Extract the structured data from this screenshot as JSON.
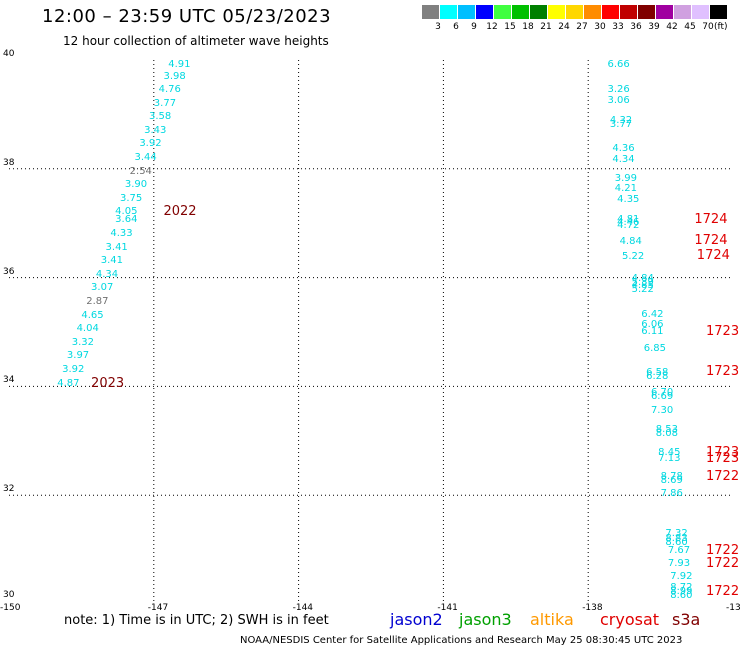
{
  "header": {
    "title": "12:00 – 23:59 UTC 05/23/2023",
    "subtitle": "12 hour collection of altimeter wave heights"
  },
  "legend": {
    "unit": "(ft)",
    "bins": [
      {
        "label": "3",
        "color": "#808080"
      },
      {
        "label": "6",
        "color": "#00ffff"
      },
      {
        "label": "9",
        "color": "#00bfff"
      },
      {
        "label": "12",
        "color": "#0000ff"
      },
      {
        "label": "15",
        "color": "#40ff40"
      },
      {
        "label": "18",
        "color": "#00c000"
      },
      {
        "label": "21",
        "color": "#008000"
      },
      {
        "label": "24",
        "color": "#ffff00"
      },
      {
        "label": "27",
        "color": "#ffd700"
      },
      {
        "label": "30",
        "color": "#ff8c00"
      },
      {
        "label": "33",
        "color": "#ff0000"
      },
      {
        "label": "36",
        "color": "#c00000"
      },
      {
        "label": "39",
        "color": "#800000"
      },
      {
        "label": "42",
        "color": "#a000a0"
      },
      {
        "label": "45",
        "color": "#d0a0e0"
      },
      {
        "label": "70",
        "color": "#e0c0ff"
      },
      {
        "label": "",
        "color": "#000000"
      }
    ]
  },
  "axes": {
    "lon_ticks": [
      "-150",
      "-147",
      "-144",
      "-141",
      "-138",
      "-13"
    ],
    "lat_ticks": [
      "40",
      "38",
      "36",
      "34",
      "32",
      "30"
    ]
  },
  "tracks": [
    {
      "satellite": "jason3",
      "color_cyan": "#00d8e0",
      "color_gray": "#707070",
      "observations": [
        {
          "lat": 39.9,
          "lon": -146.7,
          "v": "4.91",
          "c": "cyan"
        },
        {
          "lat": 39.68,
          "lon": -146.8,
          "v": "3.98",
          "c": "cyan"
        },
        {
          "lat": 39.45,
          "lon": -146.9,
          "v": "4.76",
          "c": "cyan"
        },
        {
          "lat": 39.2,
          "lon": -147.0,
          "v": "3.77",
          "c": "cyan"
        },
        {
          "lat": 38.95,
          "lon": -147.1,
          "v": "3.58",
          "c": "cyan"
        },
        {
          "lat": 38.7,
          "lon": -147.2,
          "v": "3.43",
          "c": "cyan"
        },
        {
          "lat": 38.45,
          "lon": -147.3,
          "v": "3.92",
          "c": "cyan"
        },
        {
          "lat": 38.2,
          "lon": -147.4,
          "v": "3.44",
          "c": "cyan"
        },
        {
          "lat": 37.95,
          "lon": -147.5,
          "v": "2.54",
          "c": "gray"
        },
        {
          "lat": 37.7,
          "lon": -147.6,
          "v": "3.90",
          "c": "cyan"
        },
        {
          "lat": 37.45,
          "lon": -147.7,
          "v": "3.75",
          "c": "cyan"
        },
        {
          "lat": 37.2,
          "lon": -147.8,
          "v": "4.05",
          "c": "cyan"
        },
        {
          "lat": 37.05,
          "lon": -147.8,
          "v": "3.64",
          "c": "cyan"
        },
        {
          "lat": 36.8,
          "lon": -147.9,
          "v": "4.33",
          "c": "cyan"
        },
        {
          "lat": 36.55,
          "lon": -148.0,
          "v": "3.41",
          "c": "cyan"
        },
        {
          "lat": 36.3,
          "lon": -148.1,
          "v": "3.41",
          "c": "cyan"
        },
        {
          "lat": 36.05,
          "lon": -148.2,
          "v": "4.34",
          "c": "cyan"
        },
        {
          "lat": 35.8,
          "lon": -148.3,
          "v": "3.07",
          "c": "cyan"
        },
        {
          "lat": 35.55,
          "lon": -148.4,
          "v": "2.87",
          "c": "gray"
        },
        {
          "lat": 35.3,
          "lon": -148.5,
          "v": "4.65",
          "c": "cyan"
        },
        {
          "lat": 35.05,
          "lon": -148.6,
          "v": "4.04",
          "c": "cyan"
        },
        {
          "lat": 34.8,
          "lon": -148.7,
          "v": "3.32",
          "c": "cyan"
        },
        {
          "lat": 34.55,
          "lon": -148.8,
          "v": "3.97",
          "c": "cyan"
        },
        {
          "lat": 34.3,
          "lon": -148.9,
          "v": "3.92",
          "c": "cyan"
        },
        {
          "lat": 34.05,
          "lon": -149.0,
          "v": "4.87",
          "c": "cyan"
        }
      ],
      "times": [
        {
          "lat": 37.2,
          "lon": -146.8,
          "t": "2022"
        },
        {
          "lat": 34.05,
          "lon": -148.3,
          "t": "2023"
        }
      ],
      "time_color": "#800000"
    },
    {
      "satellite": "cryosat",
      "observations": [
        {
          "lat": 39.9,
          "lon": -137.6,
          "v": "6.66"
        },
        {
          "lat": 39.45,
          "lon": -137.6,
          "v": "3.26"
        },
        {
          "lat": 39.25,
          "lon": -137.6,
          "v": "3.06"
        },
        {
          "lat": 38.87,
          "lon": -137.55,
          "v": "4.32"
        },
        {
          "lat": 38.8,
          "lon": -137.55,
          "v": "3.77"
        },
        {
          "lat": 38.37,
          "lon": -137.5,
          "v": "4.36"
        },
        {
          "lat": 38.17,
          "lon": -137.5,
          "v": "4.34"
        },
        {
          "lat": 37.82,
          "lon": -137.45,
          "v": "3.99"
        },
        {
          "lat": 37.63,
          "lon": -137.45,
          "v": "4.21"
        },
        {
          "lat": 37.42,
          "lon": -137.4,
          "v": "4.35"
        },
        {
          "lat": 37.06,
          "lon": -137.4,
          "v": "4.81"
        },
        {
          "lat": 37.0,
          "lon": -137.4,
          "v": "4.46"
        },
        {
          "lat": 36.95,
          "lon": -137.4,
          "v": "4.72"
        },
        {
          "lat": 36.66,
          "lon": -137.35,
          "v": "4.84"
        },
        {
          "lat": 36.38,
          "lon": -137.3,
          "v": "5.22"
        },
        {
          "lat": 35.98,
          "lon": -137.1,
          "v": "4.84"
        },
        {
          "lat": 35.9,
          "lon": -137.1,
          "v": "5.39"
        },
        {
          "lat": 35.84,
          "lon": -137.1,
          "v": "4.85"
        },
        {
          "lat": 35.78,
          "lon": -137.1,
          "v": "5.22"
        },
        {
          "lat": 35.32,
          "lon": -136.9,
          "v": "6.42"
        },
        {
          "lat": 35.13,
          "lon": -136.9,
          "v": "6.06"
        },
        {
          "lat": 35.0,
          "lon": -136.9,
          "v": "6.11"
        },
        {
          "lat": 34.69,
          "lon": -136.85,
          "v": "6.85"
        },
        {
          "lat": 34.25,
          "lon": -136.8,
          "v": "6.58"
        },
        {
          "lat": 34.18,
          "lon": -136.8,
          "v": "6.28"
        },
        {
          "lat": 33.87,
          "lon": -136.7,
          "v": "6.70"
        },
        {
          "lat": 33.8,
          "lon": -136.7,
          "v": "6.69"
        },
        {
          "lat": 33.55,
          "lon": -136.7,
          "v": "7.30"
        },
        {
          "lat": 33.2,
          "lon": -136.6,
          "v": "8.53"
        },
        {
          "lat": 33.13,
          "lon": -136.6,
          "v": "8.08"
        },
        {
          "lat": 32.77,
          "lon": -136.55,
          "v": "8.45"
        },
        {
          "lat": 32.67,
          "lon": -136.55,
          "v": "7.13"
        },
        {
          "lat": 32.33,
          "lon": -136.5,
          "v": "8.78"
        },
        {
          "lat": 32.27,
          "lon": -136.5,
          "v": "8.69"
        },
        {
          "lat": 32.03,
          "lon": -136.5,
          "v": "7.86"
        },
        {
          "lat": 31.28,
          "lon": -136.4,
          "v": "7.32"
        },
        {
          "lat": 31.2,
          "lon": -136.4,
          "v": "8.83"
        },
        {
          "lat": 31.13,
          "lon": -136.4,
          "v": "8.60"
        },
        {
          "lat": 30.98,
          "lon": -136.35,
          "v": "7.67"
        },
        {
          "lat": 30.73,
          "lon": -136.35,
          "v": "7.93"
        },
        {
          "lat": 30.5,
          "lon": -136.3,
          "v": "7.92"
        },
        {
          "lat": 30.3,
          "lon": -136.3,
          "v": "8.72"
        },
        {
          "lat": 30.22,
          "lon": -136.3,
          "v": "8.99"
        },
        {
          "lat": 30.15,
          "lon": -136.3,
          "v": "8.60"
        }
      ],
      "color": "#00d8e0",
      "times": [
        {
          "lat": 37.06,
          "lon": -135.8,
          "t": "1724"
        },
        {
          "lat": 36.67,
          "lon": -135.8,
          "t": "1724"
        },
        {
          "lat": 36.4,
          "lon": -135.75,
          "t": "1724"
        },
        {
          "lat": 35.0,
          "lon": -135.2,
          "t": "1723"
        },
        {
          "lat": 34.27,
          "lon": -135.1,
          "t": "1723"
        },
        {
          "lat": 32.77,
          "lon": -134.9,
          "t": "1723"
        },
        {
          "lat": 32.67,
          "lon": -134.9,
          "t": "1723"
        },
        {
          "lat": 32.33,
          "lon": -134.85,
          "t": "1722"
        },
        {
          "lat": 30.98,
          "lon": -134.7,
          "t": "1722"
        },
        {
          "lat": 30.73,
          "lon": -134.7,
          "t": "1722"
        },
        {
          "lat": 30.22,
          "lon": -134.6,
          "t": "1722"
        }
      ],
      "time_color": "#e00000"
    }
  ],
  "footer": {
    "note": "note:  1) Time is in UTC; 2) SWH is in feet",
    "satellites": [
      {
        "name": "jason2",
        "color": "#0000d0"
      },
      {
        "name": "jason3",
        "color": "#00a000"
      },
      {
        "name": "altika",
        "color": "#ff9900"
      },
      {
        "name": "cryosat",
        "color": "#e00000"
      },
      {
        "name": "s3a",
        "color": "#800000"
      }
    ],
    "credit": "NOAA/NESDIS Center for Satellite Applications and Research    May 25 08:30:45 UTC 2023"
  }
}
